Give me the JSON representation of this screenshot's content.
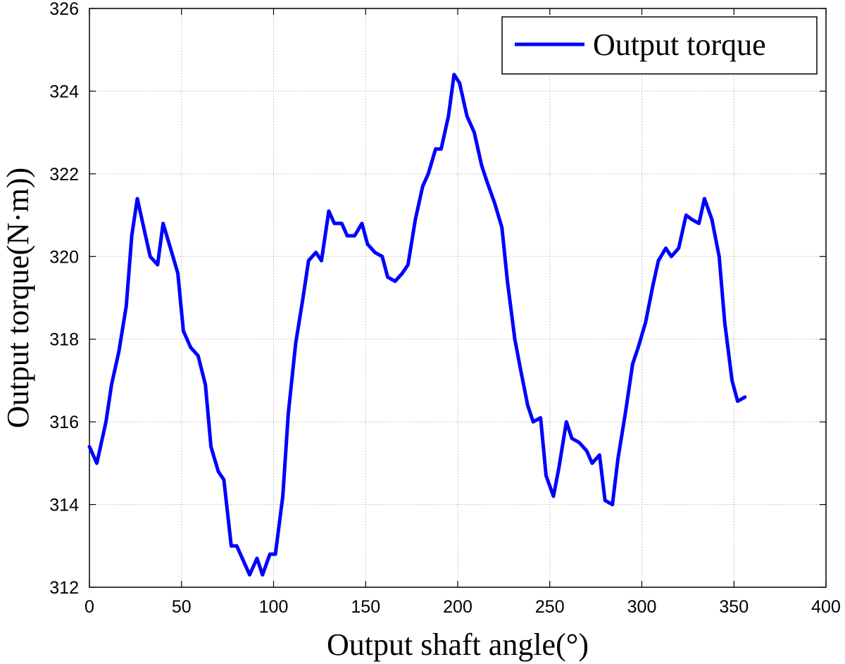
{
  "chart_data": {
    "type": "line",
    "xlabel": "Output shaft angle(°)",
    "ylabel": "Output torque(N·m))",
    "xlim": [
      0,
      400
    ],
    "ylim": [
      312,
      326
    ],
    "xticks": [
      0,
      50,
      100,
      150,
      200,
      250,
      300,
      350,
      400
    ],
    "yticks": [
      312,
      314,
      316,
      318,
      320,
      322,
      324,
      326
    ],
    "grid": true,
    "legend_position": "top-right",
    "colors": {
      "series": "#0000ff"
    },
    "series": [
      {
        "name": "Output torque",
        "x": [
          0,
          4,
          9,
          12,
          16,
          20,
          23,
          26,
          30,
          33,
          37,
          40,
          44,
          48,
          51,
          55,
          59,
          63,
          66,
          70,
          73,
          77,
          80,
          84,
          87,
          91,
          94,
          98,
          101,
          105,
          108,
          112,
          116,
          119,
          123,
          126,
          130,
          133,
          137,
          140,
          144,
          148,
          151,
          155,
          159,
          162,
          166,
          170,
          173,
          177,
          181,
          184,
          188,
          191,
          195,
          198,
          201,
          205,
          209,
          213,
          216,
          220,
          224,
          227,
          231,
          234,
          238,
          241,
          245,
          248,
          252,
          255,
          259,
          262,
          266,
          270,
          273,
          277,
          280,
          284,
          287,
          291,
          295,
          298,
          302,
          306,
          309,
          313,
          316,
          320,
          324,
          327,
          331,
          334,
          338,
          342,
          345,
          349,
          352,
          356
        ],
        "values": [
          315.4,
          315.0,
          316.0,
          316.9,
          317.7,
          318.8,
          320.5,
          321.4,
          320.6,
          320.0,
          319.8,
          320.8,
          320.2,
          319.6,
          318.2,
          317.8,
          317.6,
          316.9,
          315.4,
          314.8,
          314.6,
          313.0,
          313.0,
          312.6,
          312.3,
          312.7,
          312.3,
          312.8,
          312.8,
          314.2,
          316.2,
          317.9,
          319.0,
          319.9,
          320.1,
          319.9,
          321.1,
          320.8,
          320.8,
          320.5,
          320.5,
          320.8,
          320.3,
          320.1,
          320.0,
          319.5,
          319.4,
          319.6,
          319.8,
          320.9,
          321.7,
          322.0,
          322.6,
          322.6,
          323.4,
          324.4,
          324.2,
          323.4,
          323.0,
          322.2,
          321.8,
          321.3,
          320.7,
          319.4,
          318.0,
          317.3,
          316.4,
          316.0,
          316.1,
          314.7,
          314.2,
          314.9,
          316.0,
          315.6,
          315.5,
          315.3,
          315.0,
          315.2,
          314.1,
          314.0,
          315.1,
          316.2,
          317.4,
          317.8,
          318.4,
          319.3,
          319.9,
          320.2,
          320.0,
          320.2,
          321.0,
          320.9,
          320.8,
          321.4,
          320.9,
          320.0,
          318.4,
          317.0,
          316.5,
          316.6
        ]
      }
    ]
  }
}
